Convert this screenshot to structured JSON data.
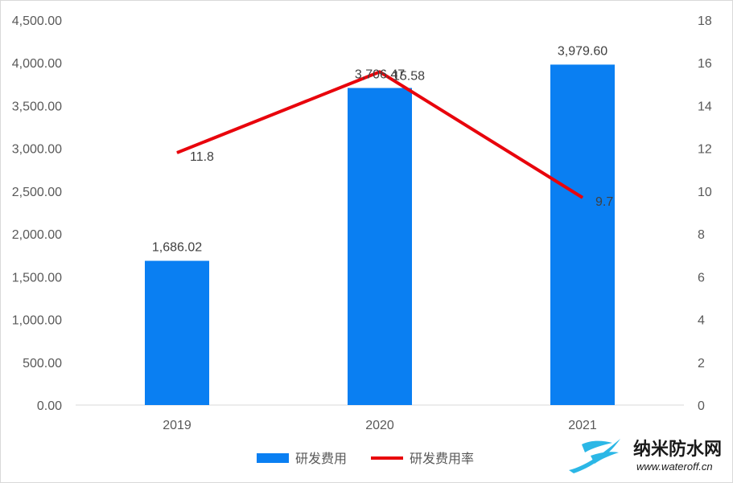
{
  "chart_data": {
    "type": "bar+line",
    "categories": [
      "2019",
      "2020",
      "2021"
    ],
    "series": [
      {
        "name": "研发费用",
        "type": "bar",
        "axis": "left",
        "values": [
          1686.02,
          3706.47,
          3979.6
        ],
        "labels": [
          "1,686.02",
          "3,706.47",
          "3,979.60"
        ],
        "color": "#0a7ff2"
      },
      {
        "name": "研发费用率",
        "type": "line",
        "axis": "right",
        "values": [
          11.8,
          15.58,
          9.7
        ],
        "labels": [
          "11.8",
          "15.58",
          "9.7"
        ],
        "color": "#e8040c"
      }
    ],
    "y_left": {
      "range": [
        0,
        4500
      ],
      "ticks": [
        0,
        500,
        1000,
        1500,
        2000,
        2500,
        3000,
        3500,
        4000,
        4500
      ],
      "tick_labels": [
        "0.00",
        "500.00",
        "1,000.00",
        "1,500.00",
        "2,000.00",
        "2,500.00",
        "3,000.00",
        "3,500.00",
        "4,000.00",
        "4,500.00"
      ]
    },
    "y_right": {
      "range": [
        0,
        18
      ],
      "ticks": [
        0,
        2,
        4,
        6,
        8,
        10,
        12,
        14,
        16,
        18
      ],
      "tick_labels": [
        "0",
        "2",
        "4",
        "6",
        "8",
        "10",
        "12",
        "14",
        "16",
        "18"
      ]
    },
    "grid": false,
    "legend_position": "bottom-center"
  },
  "watermark": {
    "name": "纳米防水网",
    "url": "www.wateroff.cn",
    "logo_color": "#2bb7e6"
  }
}
